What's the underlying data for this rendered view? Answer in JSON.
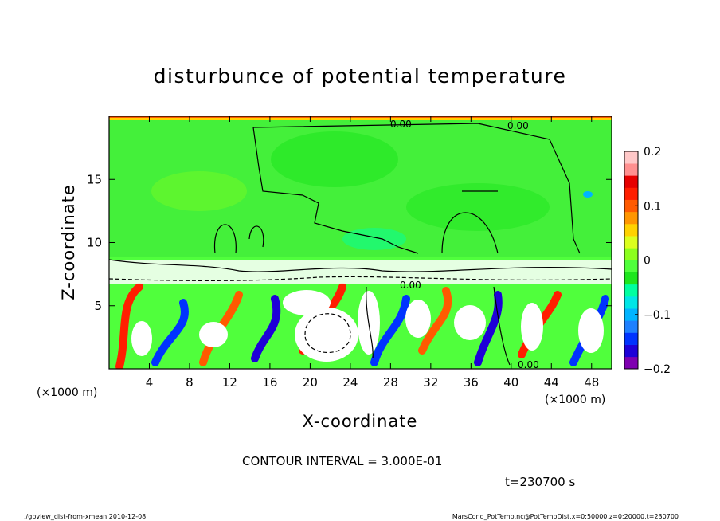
{
  "chart_data": {
    "type": "heatmap",
    "title": "disturbunce of potential temperature",
    "xlabel": "X-coordinate",
    "ylabel": "Z-coordinate",
    "x_unit_label": "(×1000 m)",
    "z_unit_label": "(×1000 m)",
    "xlim": [
      0,
      50
    ],
    "zlim": [
      0,
      20
    ],
    "x_ticks": [
      4,
      8,
      12,
      16,
      20,
      24,
      28,
      32,
      36,
      40,
      44,
      48
    ],
    "z_ticks": [
      5,
      10,
      15
    ],
    "colorbar": {
      "range": [
        -0.2,
        0.2
      ],
      "tick_values": [
        0.2,
        0.1,
        0,
        -0.1,
        -0.2
      ],
      "tick_labels": [
        "0.2",
        "0.1",
        "0",
        "−0.1",
        "−0.2"
      ],
      "colors": [
        "#7f00b0",
        "#1e00d8",
        "#0033ff",
        "#1e80ff",
        "#00b4ff",
        "#00e6e6",
        "#00ffa0",
        "#1ee61e",
        "#50ff3c",
        "#8cff1e",
        "#dcff1e",
        "#ffd200",
        "#ff9600",
        "#ff5a00",
        "#ff1e00",
        "#e60000",
        "#ff9090",
        "#ffc8c8"
      ]
    },
    "contour_labels": [
      "0.00",
      "0.00",
      "0.00",
      "0.00"
    ],
    "contour_interval_text": "CONTOUR INTERVAL = 3.000E-01",
    "time_text": "t=230700 s"
  },
  "footer": {
    "left": "./gpview_dist-from-xmean  2010-12-08",
    "right": "MarsCond_PotTemp.nc@PotTempDist,x=0:50000,z=0:20000,t=230700"
  }
}
